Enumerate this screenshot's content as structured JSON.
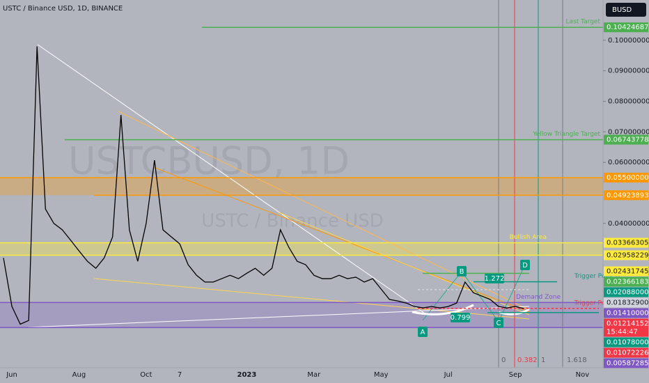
{
  "chart_data": {
    "type": "line",
    "title": "USTC / Binance USD, 1D, BINANCE",
    "watermark": "USTCBUSD, 1D",
    "watermark_sub": "USTC / Binance USD",
    "currency": "BUSD",
    "color": "#000000",
    "categories": [
      null,
      "Jun",
      null,
      null,
      null,
      null,
      null,
      null,
      null,
      "Aug",
      null,
      null,
      null,
      null,
      null,
      null,
      null,
      "Oct",
      null,
      null,
      null,
      "7",
      null,
      null,
      null,
      null,
      null,
      null,
      null,
      "2023",
      null,
      null,
      null,
      null,
      null,
      null,
      null,
      "Mar",
      null,
      null,
      null,
      null,
      null,
      null,
      null,
      "May",
      null,
      null,
      null,
      null,
      null,
      null,
      null,
      "Jul",
      null,
      null,
      null,
      null,
      null,
      null,
      null,
      "Sep",
      null,
      null,
      null,
      null,
      null,
      null,
      null,
      "Nov"
    ],
    "values": [
      0.0287,
      0.0128,
      0.007,
      0.0082,
      0.098,
      0.0447,
      0.04,
      0.0379,
      0.0345,
      0.031,
      0.0276,
      0.0253,
      0.0287,
      0.0356,
      0.0755,
      0.0379,
      0.0276,
      0.04,
      0.0607,
      0.0379,
      0.0356,
      0.0333,
      0.0265,
      0.023,
      0.0208,
      0.0208,
      0.0219,
      0.023,
      0.0219,
      0.0237,
      0.0253,
      0.023,
      0.0253,
      0.0379,
      0.0322,
      0.0276,
      0.0265,
      0.023,
      0.0219,
      0.0219,
      0.023,
      0.0219,
      0.0224,
      0.0208,
      0.0219,
      0.0185,
      0.0151,
      0.0146,
      0.0139,
      0.0128,
      0.0123,
      0.0128,
      0.0123,
      0.0128,
      0.0139,
      0.0208,
      0.0173,
      0.0162,
      0.0151,
      0.0128,
      0.0123,
      0.0128,
      0.0121,
      null,
      null,
      null,
      null,
      null,
      null,
      null
    ],
    "ylim": [
      -0.0043,
      0.1132
    ],
    "yticks": [
      {
        "value": 0.1,
        "label": "0.10000000"
      },
      {
        "value": 0.09,
        "label": "0.09000000"
      },
      {
        "value": 0.08,
        "label": "0.08000000"
      },
      {
        "value": 0.07,
        "label": "0.07000000"
      },
      {
        "value": 0.06,
        "label": "0.06000000"
      },
      {
        "value": 0.04,
        "label": "0.04000000"
      }
    ],
    "levels": [
      {
        "value": 0.10424687,
        "color": "#4caf50",
        "text": "Last Target"
      },
      {
        "value": 0.06743778,
        "color": "#4caf50",
        "text": "Yellow Triangle Target"
      },
      {
        "value": 0.055,
        "label": "0.05500000",
        "color": "#ff9800"
      },
      {
        "value": 0.04923893,
        "color": "#ff9800"
      },
      {
        "value": 0.03366305,
        "color": "#ffeb3b",
        "text": "Bullish Area"
      },
      {
        "value": 0.02958229,
        "color": "#ffeb3b"
      },
      {
        "value": 0.02431745,
        "color": "#ffeb3b"
      },
      {
        "value": 0.02366183,
        "color": "#4caf50"
      },
      {
        "value": 0.02088,
        "label": "0.02088000",
        "color": "#089981",
        "text": "Trigger Point B"
      },
      {
        "value": 0.018329,
        "label": "0.01832900",
        "color": "#d1d4dc"
      },
      {
        "value": 0.0141,
        "label": "0.01410000",
        "color": "#7e57c2",
        "text": "Demand Zone"
      },
      {
        "value": 0.01214152,
        "color": "#f23645",
        "text": "Trigger Point C"
      },
      {
        "value": 0.01078,
        "label": "0.01078000",
        "color": "#089981"
      },
      {
        "value": 0.01072226,
        "color": "#f23645"
      },
      {
        "value": 0.00587285,
        "color": "#7e57c2"
      }
    ],
    "countdown": "15:44:47",
    "points": [
      "A",
      "B",
      "C",
      "D"
    ],
    "ratios": [
      "1.272",
      "0.799"
    ],
    "fib": [
      "0",
      "0.382",
      "1",
      "1.618"
    ]
  }
}
